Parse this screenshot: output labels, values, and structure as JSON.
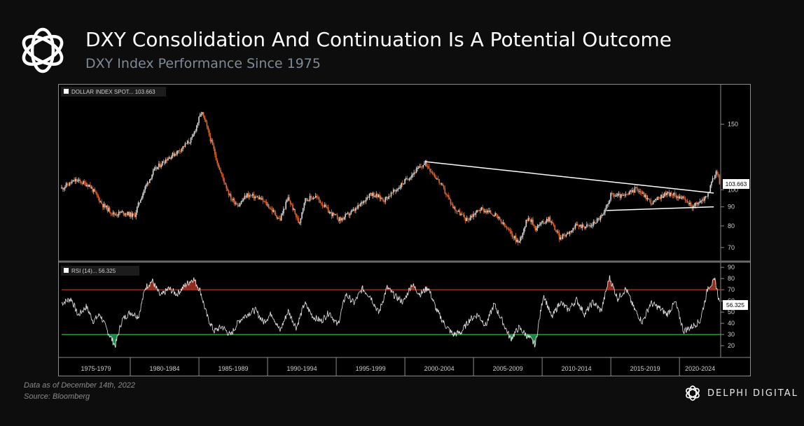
{
  "header": {
    "title": "DXY Consolidation And Continuation Is A Potential Outcome",
    "subtitle": "DXY Index Performance Since 1975"
  },
  "footer": {
    "data_note": "Data as of December  14th, 2022",
    "source": "Source: Bloomberg",
    "brand": "DELPHI DIGITAL"
  },
  "colors": {
    "background": "#0d0d0d",
    "candle_up": "#d9d9d9",
    "candle_down": "#e8682a",
    "overbought_line": "#c0392b",
    "oversold_line": "#2ecc40",
    "trendline": "#ffffff"
  },
  "chart_data": [
    {
      "type": "line",
      "name": "price",
      "legend": "DOLLAR INDEX SPOT...",
      "last_value_label": "103.663",
      "current_value": 103.663,
      "scale": "log",
      "ylim": [
        65,
        185
      ],
      "xlim": [
        1975.0,
        2023.0
      ],
      "yticks": [
        70,
        80,
        90,
        100,
        150
      ],
      "x_periods": [
        "1975-1979",
        "1980-1984",
        "1985-1989",
        "1990-1994",
        "1995-1999",
        "2000-2004",
        "2005-2009",
        "2010-2014",
        "2015-2019",
        "2020-2024"
      ],
      "x": [
        1975.0,
        1976.0,
        1977.0,
        1978.0,
        1978.8,
        1979.5,
        1980.3,
        1981.0,
        1981.7,
        1982.5,
        1983.5,
        1984.5,
        1985.2,
        1985.8,
        1986.5,
        1987.3,
        1987.9,
        1988.5,
        1989.4,
        1990.0,
        1990.9,
        1991.5,
        1992.3,
        1992.7,
        1993.5,
        1994.5,
        1995.3,
        1996.5,
        1997.5,
        1998.5,
        1999.5,
        2000.5,
        2001.5,
        2002.5,
        2003.5,
        2004.5,
        2005.5,
        2006.5,
        2007.5,
        2008.3,
        2009.0,
        2009.5,
        2010.5,
        2011.3,
        2012.5,
        2013.5,
        2014.5,
        2015.0,
        2016.0,
        2016.9,
        2018.0,
        2019.0,
        2020.0,
        2020.5,
        2021.0,
        2021.5,
        2022.0,
        2022.7,
        2022.95
      ],
      "y": [
        101,
        106,
        103,
        91,
        86,
        87,
        85,
        100,
        112,
        120,
        127,
        137,
        162,
        138,
        113,
        95,
        91,
        97,
        95,
        91,
        83,
        95,
        81,
        94,
        96,
        87,
        83,
        89,
        98,
        94,
        101,
        110,
        118,
        105,
        90,
        83,
        89,
        86,
        78,
        72,
        85,
        79,
        84,
        74,
        80,
        80,
        86,
        97,
        96,
        101,
        92,
        98,
        96,
        93,
        90,
        93,
        96,
        113,
        103.663
      ],
      "trendlines": [
        {
          "x": [
            2001.5,
            2022.5
          ],
          "y": [
            119,
            98
          ]
        },
        {
          "x": [
            2014.7,
            2022.5
          ],
          "y": [
            88,
            90
          ]
        }
      ]
    },
    {
      "type": "line",
      "name": "rsi",
      "legend": "RSI (14)...",
      "last_value_label": "56.325",
      "current_value": 56.325,
      "ylim": [
        12,
        92
      ],
      "yticks": [
        20,
        30,
        40,
        50,
        60,
        70,
        80,
        90
      ],
      "overbought": 70,
      "oversold": 30,
      "x": [
        1975.0,
        1975.7,
        1976.2,
        1976.8,
        1977.3,
        1977.8,
        1978.3,
        1978.9,
        1979.4,
        1980.0,
        1980.6,
        1981.1,
        1981.6,
        1982.2,
        1982.8,
        1983.4,
        1984.0,
        1984.6,
        1985.1,
        1985.6,
        1986.1,
        1986.7,
        1987.3,
        1987.9,
        1988.5,
        1989.1,
        1989.7,
        1990.3,
        1990.9,
        1991.5,
        1992.1,
        1992.7,
        1993.3,
        1993.9,
        1994.5,
        1995.1,
        1995.7,
        1996.3,
        1996.9,
        1997.5,
        1998.1,
        1998.7,
        1999.3,
        1999.9,
        2000.5,
        2001.1,
        2001.7,
        2002.3,
        2002.9,
        2003.5,
        2004.1,
        2004.7,
        2005.3,
        2005.9,
        2006.5,
        2007.1,
        2007.7,
        2008.3,
        2008.9,
        2009.5,
        2010.1,
        2010.7,
        2011.3,
        2011.9,
        2012.5,
        2013.1,
        2013.7,
        2014.3,
        2014.9,
        2015.5,
        2016.1,
        2016.7,
        2017.3,
        2017.9,
        2018.5,
        2019.1,
        2019.7,
        2020.3,
        2020.9,
        2021.5,
        2022.1,
        2022.6,
        2022.95
      ],
      "y": [
        58,
        62,
        47,
        55,
        42,
        48,
        34,
        20,
        43,
        50,
        46,
        72,
        78,
        64,
        71,
        66,
        74,
        80,
        69,
        46,
        33,
        37,
        29,
        42,
        48,
        52,
        41,
        49,
        33,
        51,
        36,
        58,
        46,
        42,
        50,
        38,
        66,
        58,
        71,
        64,
        49,
        72,
        64,
        59,
        75,
        66,
        72,
        52,
        39,
        30,
        32,
        43,
        48,
        38,
        57,
        42,
        26,
        36,
        29,
        21,
        66,
        45,
        59,
        52,
        61,
        48,
        59,
        51,
        81,
        62,
        71,
        53,
        41,
        58,
        54,
        48,
        59,
        33,
        37,
        42,
        73,
        78,
        56.325
      ]
    }
  ]
}
